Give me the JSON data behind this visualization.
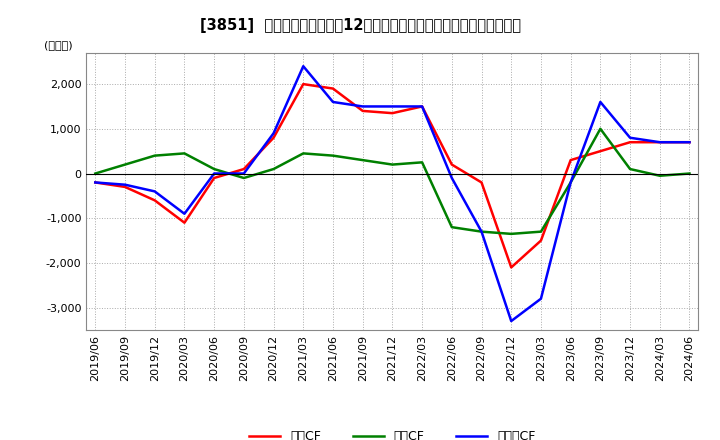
{
  "title": "[3851]  キャッシュフローの12か月移動合計の対前年同期増減額の推移",
  "ylabel": "(百万円)",
  "ylim": [
    -3500,
    2700
  ],
  "yticks": [
    -3000,
    -2000,
    -1000,
    0,
    1000,
    2000
  ],
  "x_labels": [
    "2019/06",
    "2019/09",
    "2019/12",
    "2020/03",
    "2020/06",
    "2020/09",
    "2020/12",
    "2021/03",
    "2021/06",
    "2021/09",
    "2021/12",
    "2022/03",
    "2022/06",
    "2022/09",
    "2022/12",
    "2023/03",
    "2023/06",
    "2023/09",
    "2023/12",
    "2024/03",
    "2024/06"
  ],
  "operating_cf": [
    -200,
    -300,
    -600,
    -1100,
    -100,
    100,
    800,
    2000,
    1900,
    1400,
    1350,
    1500,
    200,
    -200,
    -2100,
    -1500,
    300,
    500,
    700,
    700,
    700
  ],
  "investing_cf": [
    0,
    200,
    400,
    450,
    100,
    -100,
    100,
    450,
    400,
    300,
    200,
    250,
    -1200,
    -1300,
    -1350,
    -1300,
    -200,
    1000,
    100,
    -50,
    0
  ],
  "free_cf": [
    -200,
    -250,
    -400,
    -900,
    0,
    0,
    900,
    2400,
    1600,
    1500,
    1500,
    1500,
    -100,
    -1300,
    -3300,
    -2800,
    -200,
    1600,
    800,
    700,
    700
  ],
  "line_colors": {
    "operating_cf": "#ff0000",
    "investing_cf": "#008000",
    "free_cf": "#0000ff"
  },
  "legend_labels": {
    "operating_cf": "営業CF",
    "investing_cf": "投資CF",
    "free_cf": "フリーCF"
  },
  "bg_color": "#ffffff",
  "grid_color": "#aaaaaa",
  "title_fontsize": 10.5,
  "axis_fontsize": 8,
  "legend_fontsize": 9
}
